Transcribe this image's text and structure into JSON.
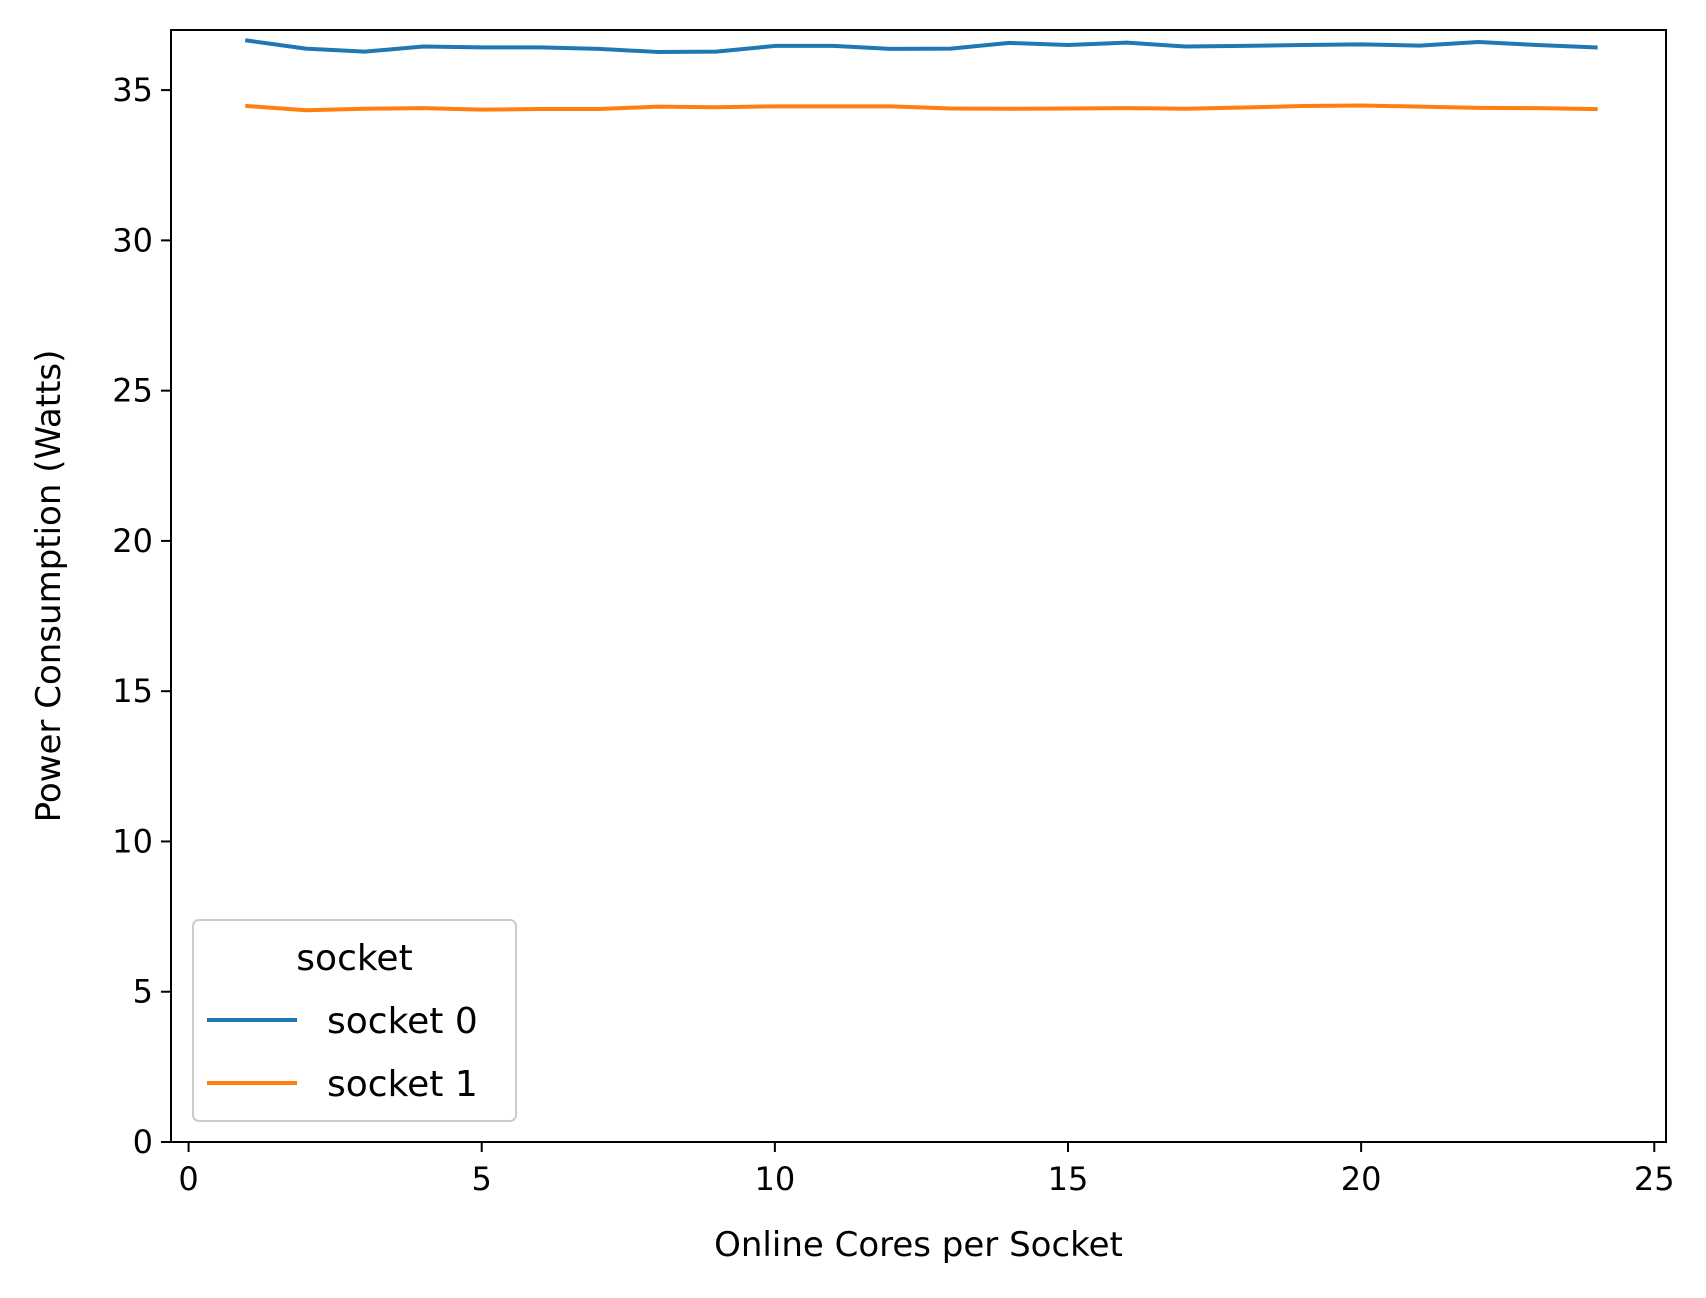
{
  "chart_data": {
    "type": "line",
    "xlabel": "Online Cores per Socket",
    "ylabel": "Power Consumption (Watts)",
    "xlim": [
      -0.3,
      25.2
    ],
    "ylim": [
      0,
      37
    ],
    "xticks": [
      0,
      5,
      10,
      15,
      20,
      25
    ],
    "yticks": [
      0,
      5,
      10,
      15,
      20,
      25,
      30,
      35
    ],
    "grid": false,
    "legend": {
      "title": "socket",
      "placement": "lower-left"
    },
    "x": [
      1,
      2,
      3,
      4,
      5,
      6,
      7,
      8,
      9,
      10,
      11,
      12,
      13,
      14,
      15,
      16,
      17,
      18,
      19,
      20,
      21,
      22,
      23,
      24
    ],
    "series": [
      {
        "name": "socket 0",
        "color": "#1f77b4",
        "values": [
          36.65,
          36.38,
          36.28,
          36.45,
          36.42,
          36.42,
          36.37,
          36.27,
          36.28,
          36.47,
          36.47,
          36.37,
          36.38,
          36.57,
          36.5,
          36.58,
          36.45,
          36.47,
          36.5,
          36.52,
          36.48,
          36.6,
          36.5,
          36.42
        ]
      },
      {
        "name": "socket 1",
        "color": "#ff7f0e",
        "values": [
          34.47,
          34.33,
          34.38,
          34.4,
          34.35,
          34.37,
          34.37,
          34.45,
          34.43,
          34.46,
          34.46,
          34.46,
          34.39,
          34.38,
          34.39,
          34.4,
          34.38,
          34.42,
          34.47,
          34.49,
          34.45,
          34.41,
          34.4,
          34.37
        ]
      }
    ]
  }
}
